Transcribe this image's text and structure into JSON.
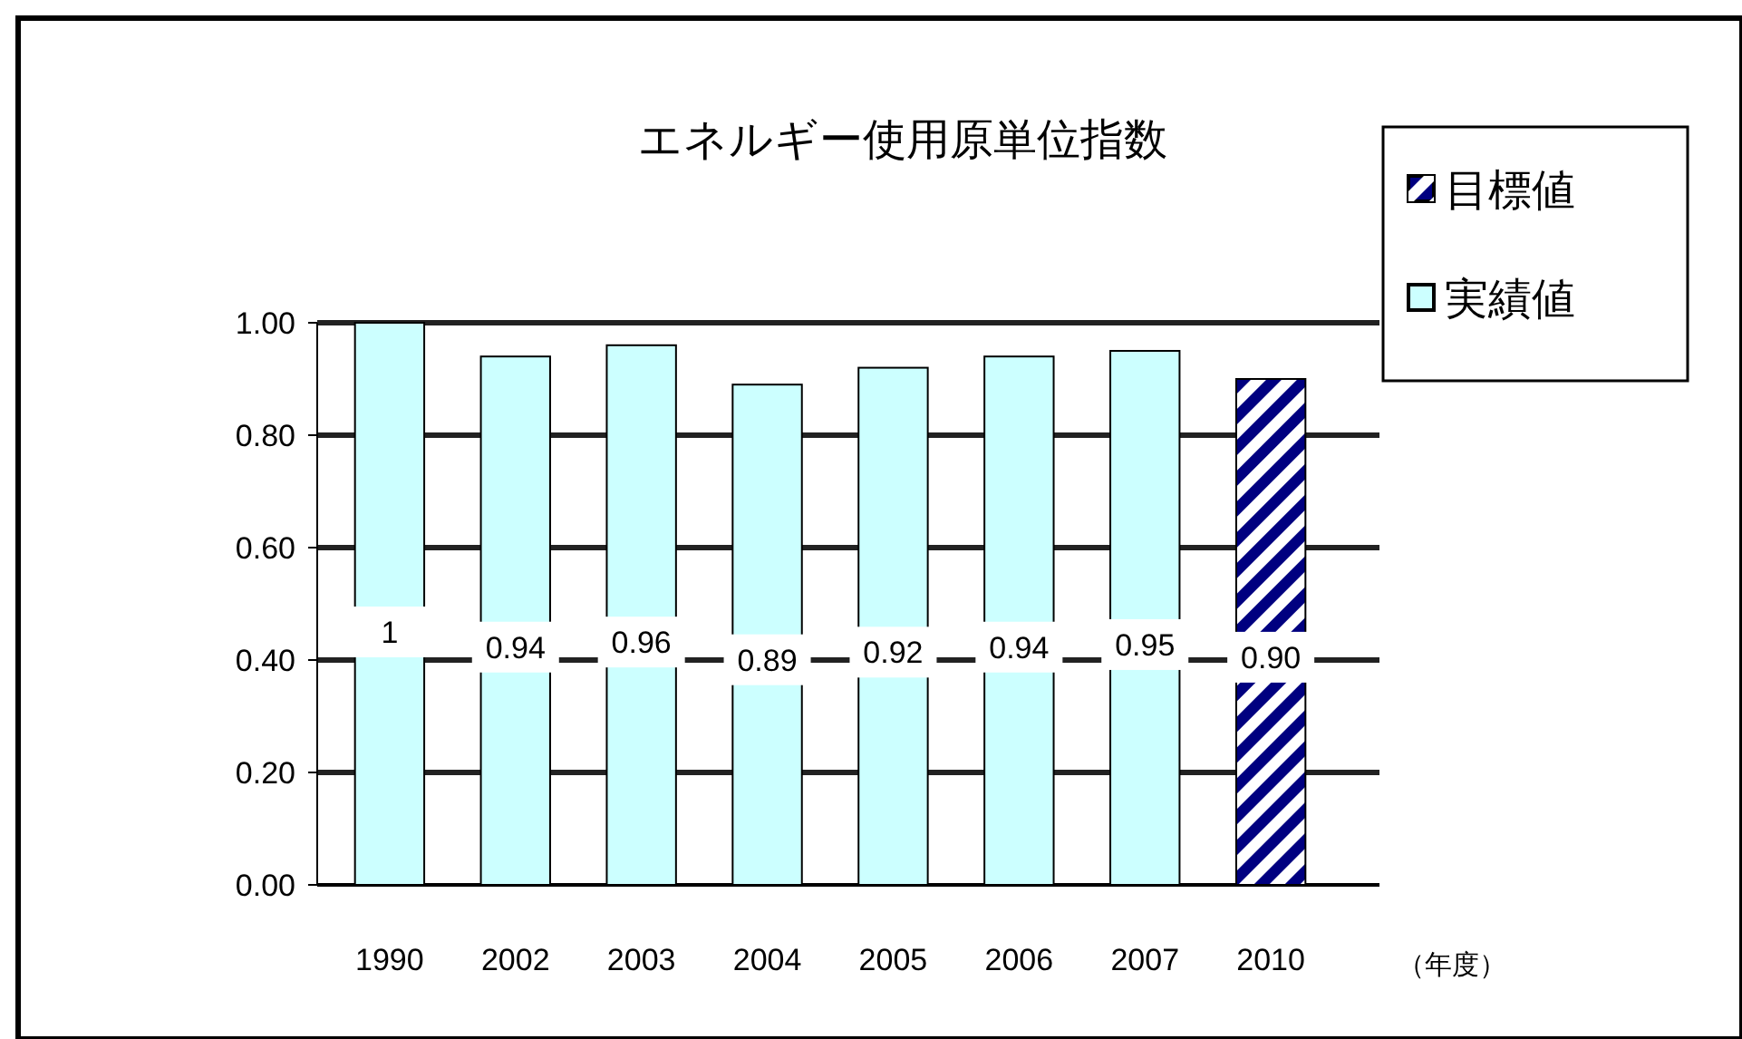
{
  "chart_data": {
    "type": "bar",
    "title": "エネルギー使用原単位指数",
    "xlabel": "（年度）",
    "categories": [
      "1990",
      "2002",
      "2003",
      "2004",
      "2005",
      "2006",
      "2007",
      "2010"
    ],
    "series": [
      {
        "name": "目標値",
        "color": "#000080",
        "values": [
          null,
          null,
          null,
          null,
          null,
          null,
          null,
          0.9
        ],
        "value_labels": [
          null,
          null,
          null,
          null,
          null,
          null,
          null,
          "0.90"
        ]
      },
      {
        "name": "実績値",
        "color": "#ccffff",
        "values": [
          1,
          0.94,
          0.96,
          0.89,
          0.92,
          0.94,
          0.95,
          null
        ],
        "value_labels": [
          "1",
          "0.94",
          "0.96",
          "0.89",
          "0.92",
          "0.94",
          "0.95",
          null
        ]
      }
    ],
    "stacked": true,
    "ylim": [
      0,
      1
    ],
    "yticks": [
      {
        "value": 0,
        "label": "0.00"
      },
      {
        "value": 0.2,
        "label": "0.20"
      },
      {
        "value": 0.4,
        "label": "0.40"
      },
      {
        "value": 0.6,
        "label": "0.60"
      },
      {
        "value": 0.8,
        "label": "0.80"
      },
      {
        "value": 1,
        "label": "1.00"
      }
    ],
    "grid": "y",
    "legend": "top right"
  }
}
